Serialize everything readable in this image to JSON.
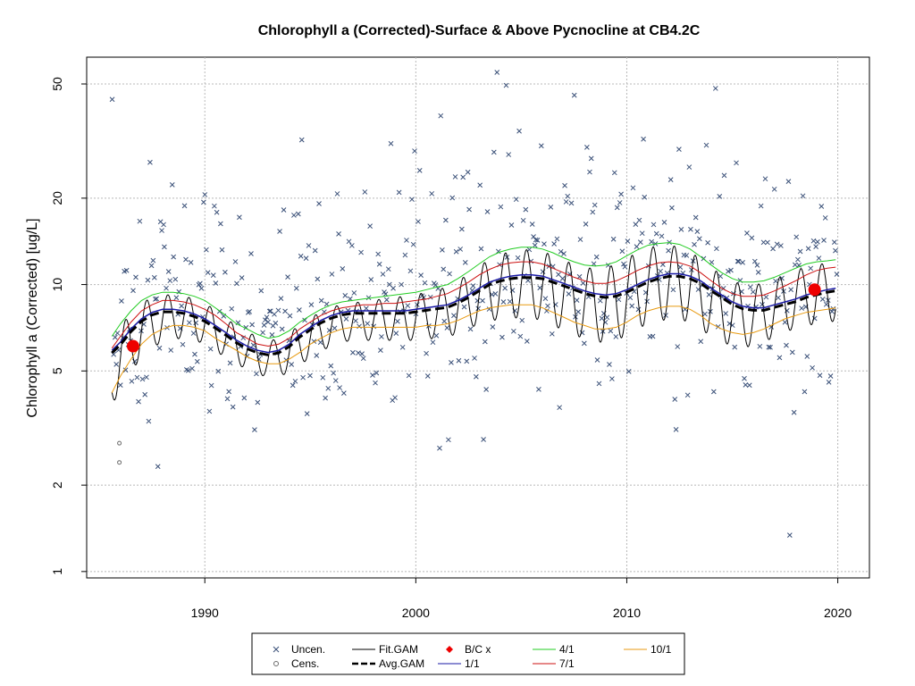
{
  "chart_data": {
    "type": "line",
    "title": "Chlorophyll a (Corrected)-Surface & Above Pycnocline at CB4.2C",
    "xlabel": "",
    "ylabel": "Chlorophyll a (Corrected) [ug/L]",
    "xlim": [
      1984.4,
      2021.5
    ],
    "ylim": [
      0.95,
      62
    ],
    "y_scale": "log",
    "x_ticks": [
      1990,
      2000,
      2010,
      2020
    ],
    "x_tick_labels": [
      "1990",
      "2000",
      "2010",
      "2020"
    ],
    "y_ticks": [
      1,
      2,
      5,
      10,
      20,
      50
    ],
    "y_tick_labels": [
      "1",
      "2",
      "5",
      "10",
      "20",
      "50"
    ],
    "grid": true,
    "reference_line_y": 10,
    "colors": {
      "uncen": "#3a5078",
      "cens": "#6b6b6b",
      "fit": "#000000",
      "avg": "#000000",
      "d1_1": "#1a1aa6",
      "d4_1": "#22cc22",
      "d7_1": "#cc1111",
      "d10_1": "#e89a10",
      "bc": "#ee0000",
      "grid": "#b8b8b8"
    },
    "series": [
      {
        "name": "1/1",
        "x": [
          1985.6,
          1986.0,
          1986.5,
          1987.0,
          1987.5,
          1988.0,
          1988.5,
          1989.0,
          1989.5,
          1990.0,
          1990.5,
          1991.0,
          1991.5,
          1992.0,
          1992.5,
          1993.0,
          1993.5,
          1994.0,
          1994.5,
          1995.0,
          1995.5,
          1996.0,
          1996.5,
          1997.0,
          1997.5,
          1998.0,
          1998.5,
          1999.0,
          1999.5,
          2000.0,
          2000.5,
          2001.0,
          2001.5,
          2002.0,
          2002.5,
          2003.0,
          2003.5,
          2004.0,
          2004.5,
          2005.0,
          2005.5,
          2006.0,
          2006.5,
          2007.0,
          2007.5,
          2008.0,
          2008.5,
          2009.0,
          2009.5,
          2010.0,
          2010.5,
          2011.0,
          2011.5,
          2012.0,
          2012.5,
          2013.0,
          2013.5,
          2014.0,
          2014.5,
          2015.0,
          2015.5,
          2016.0,
          2016.5,
          2017.0,
          2017.5,
          2018.0,
          2018.5,
          2019.0,
          2019.5,
          2019.9
        ],
        "values": [
          5.9,
          6.3,
          7.0,
          7.6,
          8.0,
          8.2,
          8.2,
          8.1,
          7.9,
          7.6,
          7.2,
          6.8,
          6.4,
          6.1,
          5.9,
          5.8,
          5.9,
          6.2,
          6.7,
          7.1,
          7.5,
          7.8,
          8.0,
          8.1,
          8.1,
          8.1,
          8.1,
          8.1,
          8.1,
          8.2,
          8.3,
          8.4,
          8.5,
          8.8,
          9.2,
          9.7,
          10.2,
          10.5,
          10.7,
          10.8,
          10.8,
          10.7,
          10.4,
          10.1,
          9.8,
          9.5,
          9.3,
          9.2,
          9.3,
          9.6,
          10.0,
          10.4,
          10.7,
          10.9,
          10.9,
          10.7,
          10.3,
          9.7,
          9.2,
          8.7,
          8.4,
          8.3,
          8.3,
          8.5,
          8.7,
          8.9,
          9.2,
          9.4,
          9.6,
          9.7
        ]
      },
      {
        "name": "4/1",
        "x": [
          1985.6,
          1986.0,
          1986.5,
          1987.0,
          1987.5,
          1988.0,
          1988.5,
          1989.0,
          1989.5,
          1990.0,
          1990.5,
          1991.0,
          1991.5,
          1992.0,
          1992.5,
          1993.0,
          1993.5,
          1994.0,
          1994.5,
          1995.0,
          1995.5,
          1996.0,
          1996.5,
          1997.0,
          1997.5,
          1998.0,
          1998.5,
          1999.0,
          1999.5,
          2000.0,
          2000.5,
          2001.0,
          2001.5,
          2002.0,
          2002.5,
          2003.0,
          2003.5,
          2004.0,
          2004.5,
          2005.0,
          2005.5,
          2006.0,
          2006.5,
          2007.0,
          2007.5,
          2008.0,
          2008.5,
          2009.0,
          2009.5,
          2010.0,
          2010.5,
          2011.0,
          2011.5,
          2012.0,
          2012.5,
          2013.0,
          2013.5,
          2014.0,
          2014.5,
          2015.0,
          2015.5,
          2016.0,
          2016.5,
          2017.0,
          2017.5,
          2018.0,
          2018.5,
          2019.0,
          2019.5,
          2019.9
        ],
        "values": [
          6.6,
          7.3,
          8.1,
          8.8,
          9.2,
          9.4,
          9.4,
          9.3,
          9.1,
          8.8,
          8.3,
          7.8,
          7.3,
          7.0,
          6.7,
          6.5,
          6.6,
          6.9,
          7.4,
          7.8,
          8.2,
          8.5,
          8.7,
          8.8,
          8.9,
          9.0,
          9.1,
          9.2,
          9.3,
          9.4,
          9.6,
          9.8,
          10.0,
          10.5,
          11.1,
          11.8,
          12.5,
          13.0,
          13.3,
          13.5,
          13.5,
          13.3,
          12.9,
          12.4,
          12.0,
          11.7,
          11.6,
          11.7,
          12.0,
          12.6,
          13.2,
          13.7,
          13.9,
          14.0,
          13.8,
          13.3,
          12.5,
          11.7,
          11.0,
          10.5,
          10.2,
          10.2,
          10.3,
          10.6,
          11.0,
          11.4,
          11.8,
          12.0,
          12.1,
          12.2
        ]
      },
      {
        "name": "7/1",
        "x": [
          1985.6,
          1986.0,
          1986.5,
          1987.0,
          1987.5,
          1988.0,
          1988.5,
          1989.0,
          1989.5,
          1990.0,
          1990.5,
          1991.0,
          1991.5,
          1992.0,
          1992.5,
          1993.0,
          1993.5,
          1994.0,
          1994.5,
          1995.0,
          1995.5,
          1996.0,
          1996.5,
          1997.0,
          1997.5,
          1998.0,
          1998.5,
          1999.0,
          1999.5,
          2000.0,
          2000.5,
          2001.0,
          2001.5,
          2002.0,
          2002.5,
          2003.0,
          2003.5,
          2004.0,
          2004.5,
          2005.0,
          2005.5,
          2006.0,
          2006.5,
          2007.0,
          2007.5,
          2008.0,
          2008.5,
          2009.0,
          2009.5,
          2010.0,
          2010.5,
          2011.0,
          2011.5,
          2012.0,
          2012.5,
          2013.0,
          2013.5,
          2014.0,
          2014.5,
          2015.0,
          2015.5,
          2016.0,
          2016.5,
          2017.0,
          2017.5,
          2018.0,
          2018.5,
          2019.0,
          2019.5,
          2019.9
        ],
        "values": [
          6.0,
          6.6,
          7.4,
          8.1,
          8.5,
          8.8,
          8.8,
          8.7,
          8.5,
          8.2,
          7.8,
          7.3,
          6.8,
          6.5,
          6.2,
          6.1,
          6.2,
          6.5,
          7.0,
          7.4,
          7.8,
          8.1,
          8.3,
          8.4,
          8.5,
          8.5,
          8.6,
          8.6,
          8.7,
          8.8,
          8.9,
          9.1,
          9.3,
          9.7,
          10.2,
          10.8,
          11.3,
          11.7,
          11.9,
          12.0,
          12.0,
          11.8,
          11.4,
          11.0,
          10.6,
          10.3,
          10.1,
          10.1,
          10.3,
          10.7,
          11.2,
          11.6,
          11.9,
          12.0,
          11.9,
          11.6,
          11.0,
          10.3,
          9.7,
          9.3,
          9.1,
          9.1,
          9.2,
          9.5,
          9.9,
          10.3,
          10.8,
          11.2,
          11.4,
          11.5
        ]
      },
      {
        "name": "10/1",
        "x": [
          1985.6,
          1986.0,
          1986.5,
          1987.0,
          1987.5,
          1988.0,
          1988.5,
          1989.0,
          1989.5,
          1990.0,
          1990.5,
          1991.0,
          1991.5,
          1992.0,
          1992.5,
          1993.0,
          1993.5,
          1994.0,
          1994.5,
          1995.0,
          1995.5,
          1996.0,
          1996.5,
          1997.0,
          1997.5,
          1998.0,
          1998.5,
          1999.0,
          1999.5,
          2000.0,
          2000.5,
          2001.0,
          2001.5,
          2002.0,
          2002.5,
          2003.0,
          2003.5,
          2004.0,
          2004.5,
          2005.0,
          2005.5,
          2006.0,
          2006.5,
          2007.0,
          2007.5,
          2008.0,
          2008.5,
          2009.0,
          2009.5,
          2010.0,
          2010.5,
          2011.0,
          2011.5,
          2012.0,
          2012.5,
          2013.0,
          2013.5,
          2014.0,
          2014.5,
          2015.0,
          2015.5,
          2016.0,
          2016.5,
          2017.0,
          2017.5,
          2018.0,
          2018.5,
          2019.0,
          2019.5,
          2019.9
        ],
        "values": [
          4.2,
          4.8,
          5.5,
          6.2,
          6.7,
          7.0,
          7.2,
          7.2,
          7.1,
          6.9,
          6.5,
          6.2,
          5.9,
          5.6,
          5.4,
          5.3,
          5.3,
          5.5,
          5.8,
          6.2,
          6.5,
          6.8,
          7.0,
          7.1,
          7.1,
          7.1,
          7.1,
          7.1,
          7.1,
          7.1,
          7.2,
          7.2,
          7.3,
          7.5,
          7.8,
          8.1,
          8.3,
          8.4,
          8.5,
          8.5,
          8.5,
          8.3,
          8.0,
          7.7,
          7.4,
          7.2,
          7.0,
          7.0,
          7.1,
          7.4,
          7.8,
          8.1,
          8.3,
          8.4,
          8.4,
          8.2,
          7.8,
          7.3,
          7.0,
          6.8,
          6.7,
          6.8,
          7.0,
          7.3,
          7.6,
          7.8,
          8.0,
          8.1,
          8.2,
          8.3
        ]
      }
    ],
    "red_points": [
      {
        "x": 1986.6,
        "y": 6.1
      },
      {
        "x": 2018.9,
        "y": 9.6
      }
    ],
    "censored_points": [
      {
        "x": 1985.95,
        "y": 2.8
      },
      {
        "x": 1985.95,
        "y": 2.4
      }
    ],
    "legend": {
      "placement": "bottom",
      "entries": [
        {
          "key": "uncen",
          "label": "Uncen."
        },
        {
          "key": "fit",
          "label": "Fit.GAM"
        },
        {
          "key": "bc",
          "label": "B/C x"
        },
        {
          "key": "d4_1",
          "label": "4/1"
        },
        {
          "key": "d10_1",
          "label": "10/1"
        },
        {
          "key": "cens",
          "label": "Cens."
        },
        {
          "key": "avg",
          "label": "Avg.GAM"
        },
        {
          "key": "d1_1",
          "label": "1/1"
        },
        {
          "key": "d7_1",
          "label": "7/1"
        }
      ]
    }
  }
}
